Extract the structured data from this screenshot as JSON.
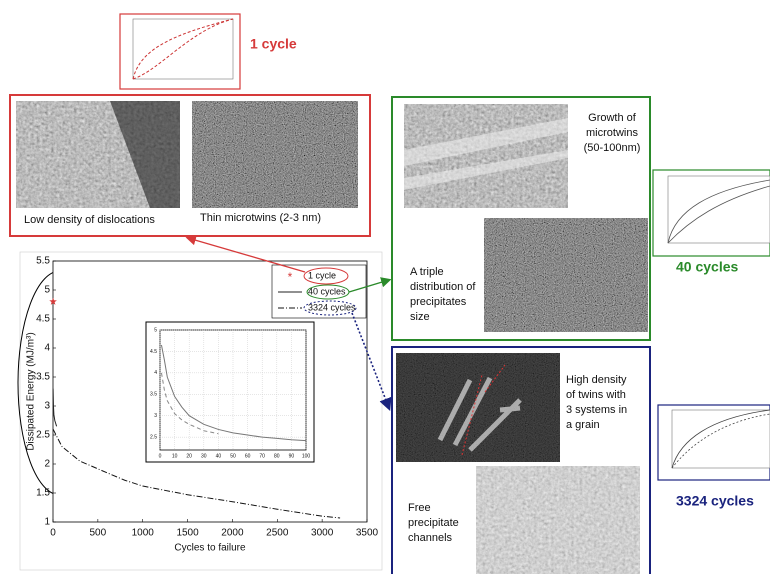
{
  "chart_data": [
    {
      "type": "line",
      "xlabel": "Cycles to failure",
      "ylabel": "Dissipated Energy (MJ/m³)",
      "xlim": [
        0,
        3500
      ],
      "xticks": [
        0,
        500,
        1000,
        1500,
        2000,
        2500,
        3000,
        3500
      ],
      "ylim": [
        1,
        5.5
      ],
      "yticks": [
        1,
        1.5,
        2,
        2.5,
        3,
        3.5,
        4,
        4.5,
        5,
        5.5
      ],
      "grid": false,
      "legend": "upper right",
      "series": [
        {
          "name": "1 cycle",
          "color": "#d63a3a",
          "marker": "star",
          "dash": "none",
          "x": [
            1
          ],
          "values": [
            4.8
          ]
        },
        {
          "name": "40 cycles",
          "color": "#222222",
          "marker": "none",
          "dash": "solid",
          "x": [
            1,
            5,
            10,
            20,
            30,
            40
          ],
          "values": [
            3.3,
            3.0,
            2.85,
            2.75,
            2.7,
            2.65
          ]
        },
        {
          "name": "3324 cycles",
          "color": "#111111",
          "marker": "none",
          "dash": "dashdot",
          "x": [
            1,
            100,
            300,
            600,
            800,
            1000,
            1500,
            2000,
            2500,
            3000,
            3200
          ],
          "values": [
            2.6,
            2.3,
            2.05,
            1.85,
            1.72,
            1.62,
            1.47,
            1.35,
            1.22,
            1.1,
            1.07
          ]
        }
      ]
    },
    {
      "type": "line",
      "xlim": [
        0,
        100
      ],
      "xticks": [
        0,
        10,
        20,
        30,
        40,
        50,
        60,
        70,
        80,
        90,
        100
      ],
      "ylim": [
        2.2,
        5
      ],
      "yticks": [
        2.5,
        3,
        3.5,
        4,
        4.5,
        5
      ],
      "grid": true,
      "series": [
        {
          "color": "#777777",
          "dash": "solid",
          "marker": "none",
          "x": [
            1,
            3,
            5,
            10,
            15,
            20,
            30,
            40,
            50,
            60,
            70,
            80,
            90,
            100
          ],
          "values": [
            4.65,
            4.3,
            3.9,
            3.45,
            3.2,
            3.0,
            2.8,
            2.68,
            2.6,
            2.55,
            2.5,
            2.47,
            2.44,
            2.42
          ]
        },
        {
          "color": "#888888",
          "dash": "dashed",
          "marker": "none",
          "x": [
            1,
            3,
            5,
            10,
            15,
            20,
            30,
            40
          ],
          "values": [
            4.0,
            3.6,
            3.35,
            3.05,
            2.9,
            2.8,
            2.65,
            2.58
          ]
        }
      ]
    }
  ],
  "panel_labels": [
    "1 cycle",
    "40 cycles",
    "3324 cycles"
  ],
  "captions": {
    "one_cycle": [
      "Low density of dislocations",
      "Thin microtwins (2-3 nm)"
    ],
    "forty_cycles": [
      [
        "Growth of",
        "microtwins",
        "(50-100nm)"
      ],
      [
        "A triple",
        "distribution of",
        "precipitates",
        "size"
      ]
    ],
    "many_cycles": [
      [
        "High density",
        "of twins with",
        "3 systems in",
        "a grain"
      ],
      [
        "Free",
        "precipitate",
        "channels"
      ]
    ]
  }
}
